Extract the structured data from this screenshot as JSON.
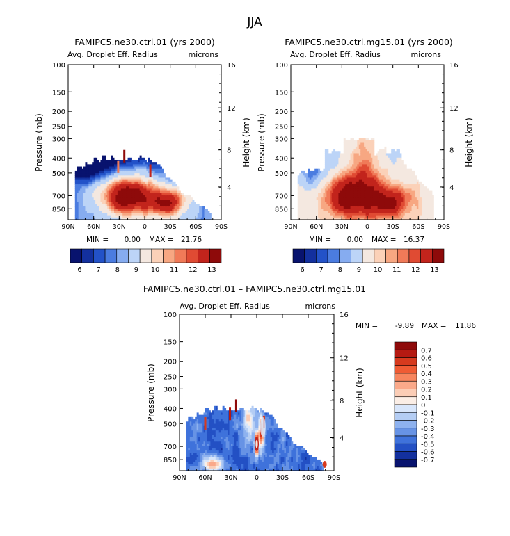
{
  "figure": {
    "season": "JJA"
  },
  "chart_data": [
    {
      "type": "heatmap",
      "title": "FAMIPC5.ne30.ctrl.01 (yrs 2000)",
      "subtitle_left": "Avg. Droplet Eff. Radius",
      "subtitle_right": "microns",
      "ylabel": "Pressure (mb)",
      "ylabel_right": "Height (km)",
      "x_ticks": [
        "90N",
        "60N",
        "30N",
        "0",
        "30S",
        "60S",
        "90S"
      ],
      "y_ticks": [
        "100",
        "150",
        "200",
        "250",
        "300",
        "400",
        "500",
        "700",
        "850"
      ],
      "y_ticks_right": [
        "16",
        "12",
        "8",
        "4"
      ],
      "min_label": "MIN =",
      "min_value": "0.00",
      "max_label": "MAX =",
      "max_value": "21.76",
      "colorbar_levels": [
        "6",
        "7",
        "8",
        "9",
        "10",
        "11",
        "12",
        "13"
      ],
      "field": "ctrl"
    },
    {
      "type": "heatmap",
      "title": "FAMIPC5.ne30.ctrl.mg15.01 (yrs 2000)",
      "subtitle_left": "Avg. Droplet Eff. Radius",
      "subtitle_right": "microns",
      "ylabel": "Pressure (mb)",
      "ylabel_right": "Height (km)",
      "x_ticks": [
        "90N",
        "60N",
        "30N",
        "0",
        "30S",
        "60S",
        "90S"
      ],
      "y_ticks": [
        "100",
        "150",
        "200",
        "250",
        "300",
        "400",
        "500",
        "700",
        "850"
      ],
      "y_ticks_right": [
        "16",
        "12",
        "8",
        "4"
      ],
      "min_label": "MIN =",
      "min_value": "0.00",
      "max_label": "MAX =",
      "max_value": "16.37",
      "colorbar_levels": [
        "6",
        "7",
        "8",
        "9",
        "10",
        "11",
        "12",
        "13"
      ],
      "field": "mg15"
    },
    {
      "type": "heatmap",
      "title": "FAMIPC5.ne30.ctrl.01 – FAMIPC5.ne30.ctrl.mg15.01",
      "subtitle_left": "Avg. Droplet Eff. Radius",
      "subtitle_right": "microns",
      "ylabel": "Pressure (mb)",
      "ylabel_right": "Height (km)",
      "x_ticks": [
        "90N",
        "60N",
        "30N",
        "0",
        "30S",
        "60S",
        "90S"
      ],
      "y_ticks": [
        "100",
        "150",
        "200",
        "250",
        "300",
        "400",
        "500",
        "700",
        "850"
      ],
      "y_ticks_right": [
        "16",
        "12",
        "8",
        "4"
      ],
      "min_label": "MIN =",
      "min_value": "-9.89",
      "max_label": "MAX =",
      "max_value": "11.86",
      "colorbar_levels": [
        "0.7",
        "0.6",
        "0.5",
        "0.4",
        "0.3",
        "0.2",
        "0.1",
        "0",
        "-0.1",
        "-0.2",
        "-0.3",
        "-0.4",
        "-0.5",
        "-0.6",
        "-0.7"
      ],
      "field": "diff"
    }
  ],
  "palettes": {
    "abs": [
      "#08136e",
      "#13309e",
      "#2352c8",
      "#4b7ce0",
      "#86acf0",
      "#bcd4f7",
      "#f4e8e0",
      "#fbd1b8",
      "#f7a782",
      "#f07a58",
      "#e04b33",
      "#c2241c",
      "#8e0a0a"
    ],
    "diff": [
      "#8e0a0a",
      "#b51a12",
      "#d63a1e",
      "#ef5b34",
      "#f7855e",
      "#faa98a",
      "#fbcdb6",
      "#fbeee6",
      "#d8e6fb",
      "#b4cdf4",
      "#8eb2ef",
      "#6793e5",
      "#3f72db",
      "#2350c4",
      "#13309e",
      "#08136e"
    ]
  }
}
